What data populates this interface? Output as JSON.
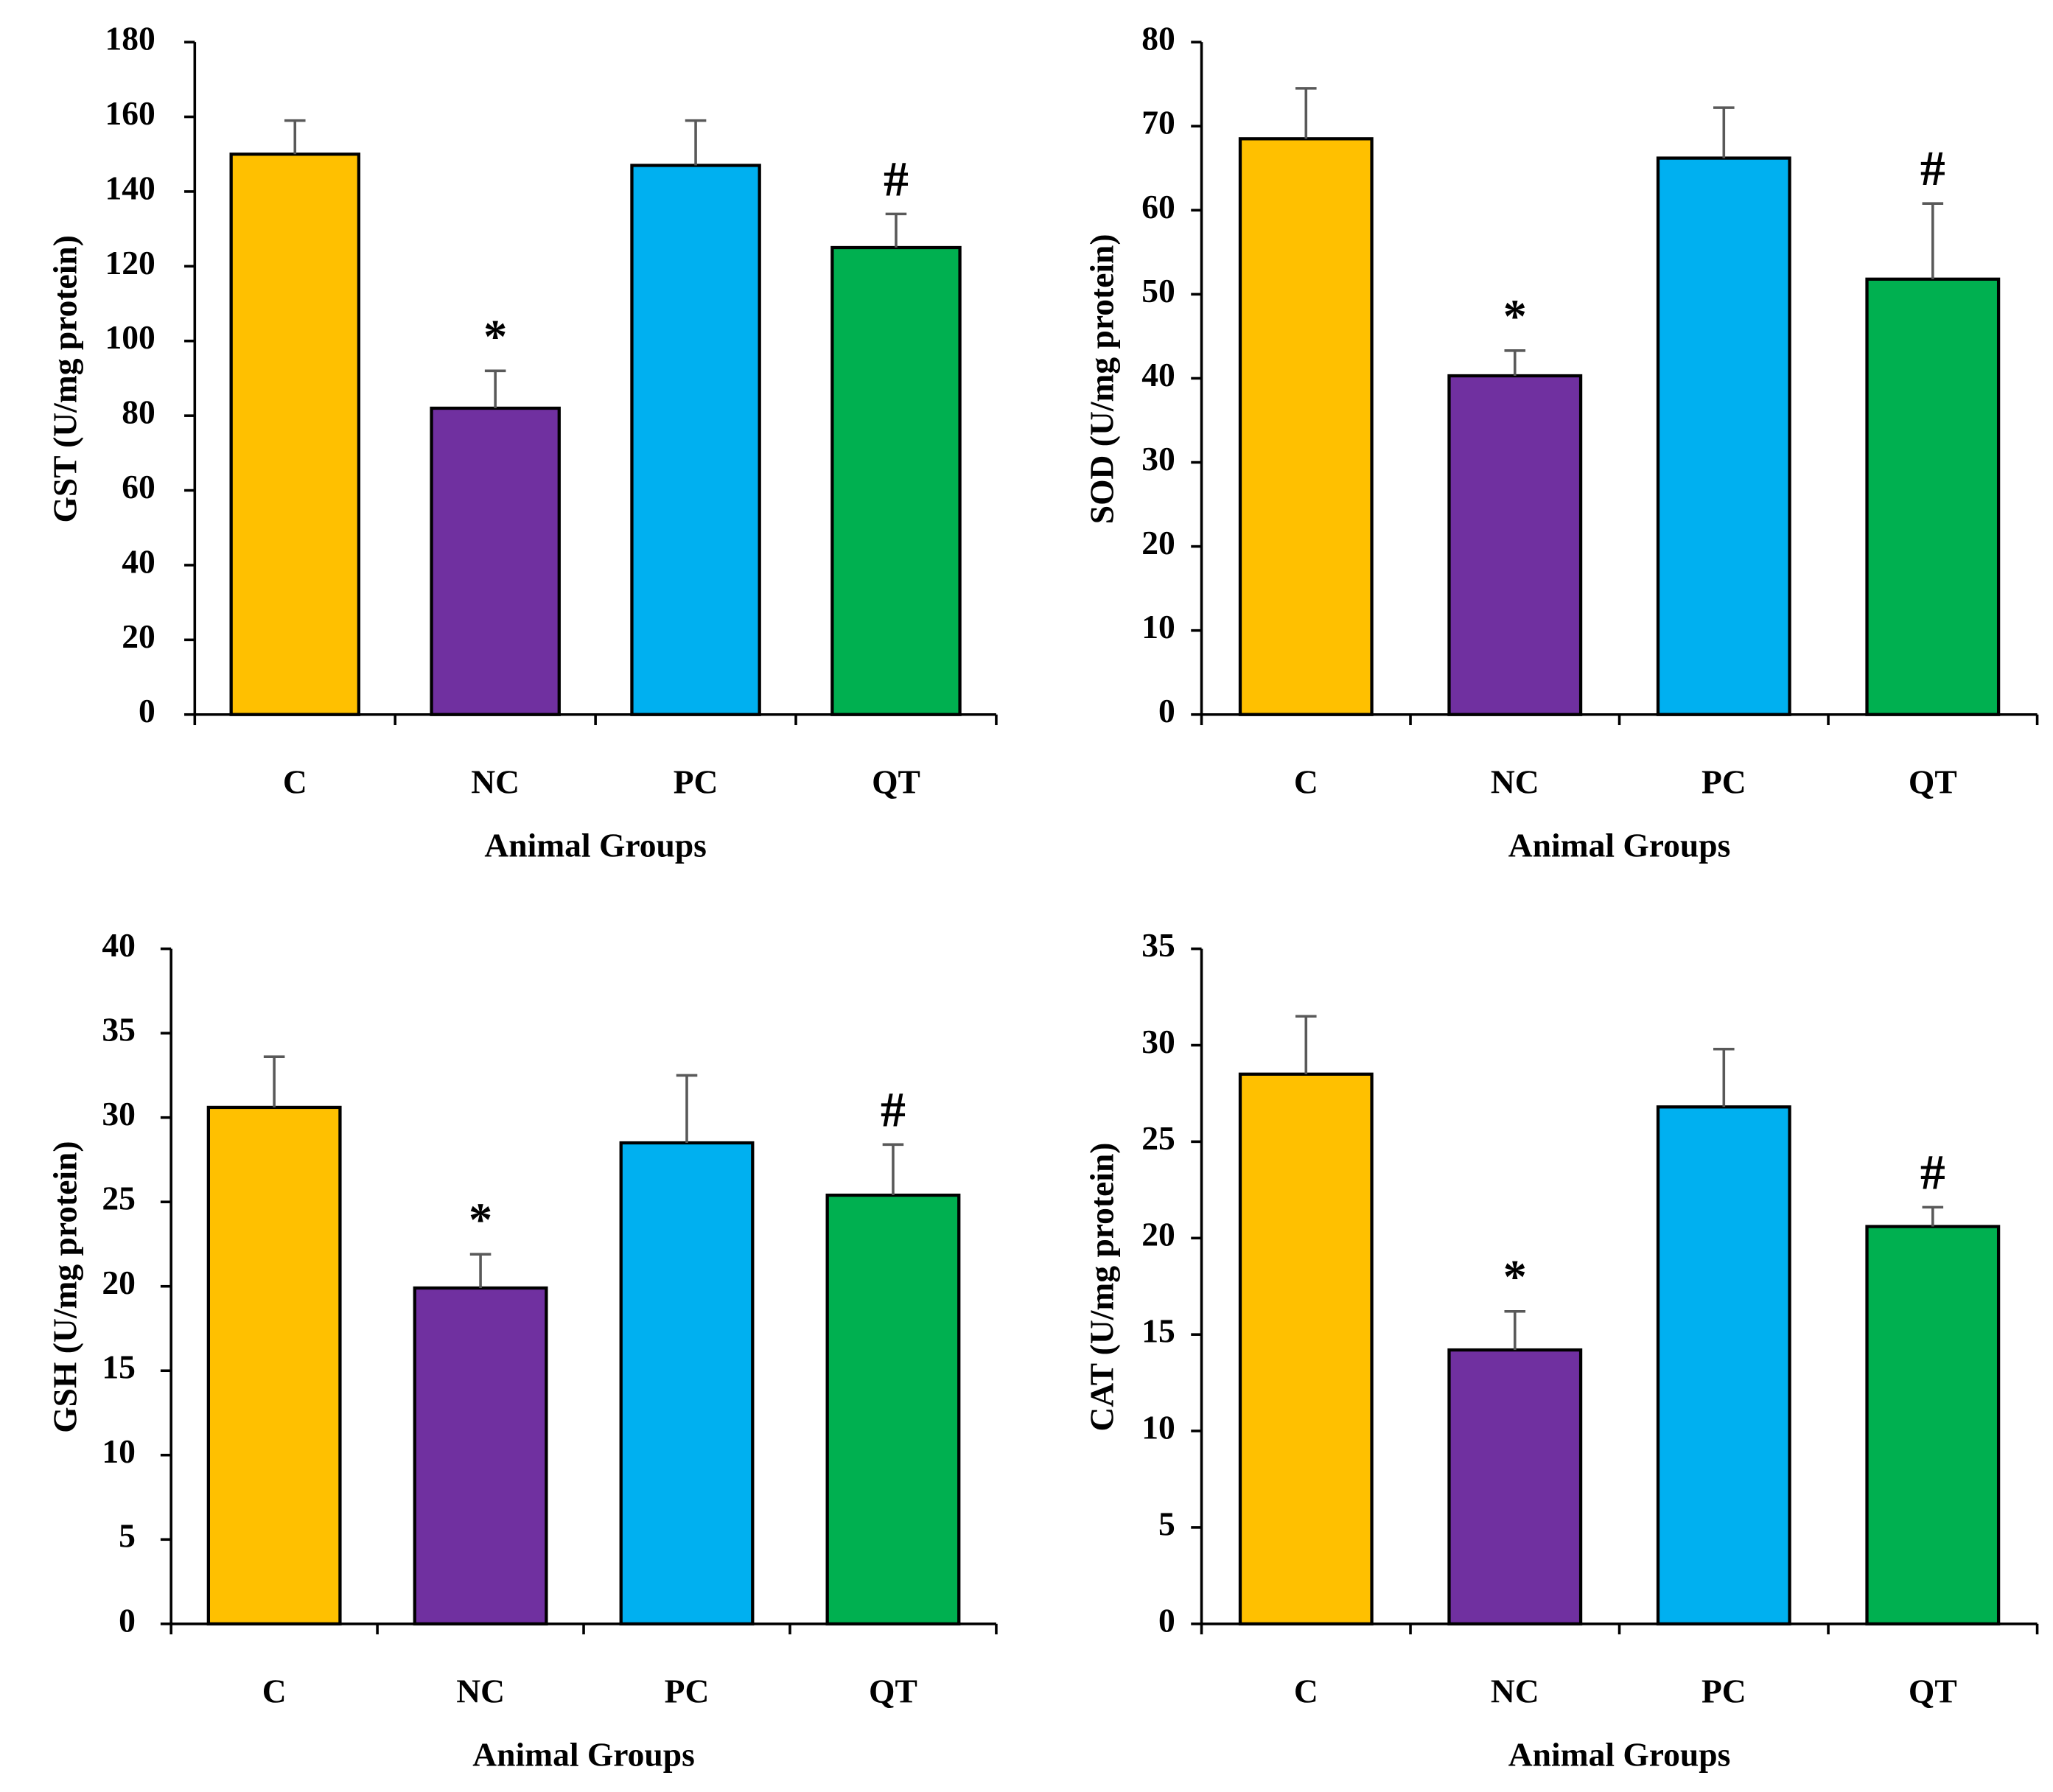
{
  "chart_data": [
    {
      "type": "bar",
      "categories": [
        "C",
        "NC",
        "PC",
        "QT"
      ],
      "values": [
        150,
        82,
        147,
        125
      ],
      "errors": [
        9,
        10,
        12,
        9
      ],
      "annotations": [
        "",
        "*",
        "",
        "#"
      ],
      "colors": [
        "#FFC000",
        "#7030A0",
        "#00B0F0",
        "#00B050"
      ],
      "xlabel": "Animal Groups",
      "ylabel": "GST (U/mg protein)",
      "ylim": [
        0,
        180
      ],
      "yticks": [
        "0",
        "20",
        "40",
        "60",
        "80",
        "100",
        "120",
        "140",
        "160",
        "180"
      ]
    },
    {
      "type": "bar",
      "categories": [
        "C",
        "NC",
        "PC",
        "QT"
      ],
      "values": [
        68.5,
        40.3,
        66.2,
        51.8
      ],
      "errors": [
        6,
        3,
        6,
        9
      ],
      "annotations": [
        "",
        "*",
        "",
        "#"
      ],
      "colors": [
        "#FFC000",
        "#7030A0",
        "#00B0F0",
        "#00B050"
      ],
      "xlabel": "Animal Groups",
      "ylabel": "SOD (U/mg protein)",
      "ylim": [
        0,
        80
      ],
      "yticks": [
        "0",
        "10",
        "20",
        "30",
        "40",
        "50",
        "60",
        "70",
        "80"
      ]
    },
    {
      "type": "bar",
      "categories": [
        "C",
        "NC",
        "PC",
        "QT"
      ],
      "values": [
        30.6,
        19.9,
        28.5,
        25.4
      ],
      "errors": [
        3,
        2,
        4,
        3
      ],
      "annotations": [
        "",
        "*",
        "",
        "#"
      ],
      "colors": [
        "#FFC000",
        "#7030A0",
        "#00B0F0",
        "#00B050"
      ],
      "xlabel": "Animal Groups",
      "ylabel": "GSH (U/mg protein)",
      "ylim": [
        0,
        40
      ],
      "yticks": [
        "0",
        "5",
        "10",
        "15",
        "20",
        "25",
        "30",
        "35",
        "40"
      ]
    },
    {
      "type": "bar",
      "categories": [
        "C",
        "NC",
        "PC",
        "QT"
      ],
      "values": [
        28.5,
        14.2,
        26.8,
        20.6
      ],
      "errors": [
        3,
        2,
        3,
        1
      ],
      "annotations": [
        "",
        "*",
        "",
        "#"
      ],
      "colors": [
        "#FFC000",
        "#7030A0",
        "#00B0F0",
        "#00B050"
      ],
      "xlabel": "Animal Groups",
      "ylabel": "CAT (U/mg protein)",
      "ylim": [
        0,
        35
      ],
      "yticks": [
        "0",
        "5",
        "10",
        "15",
        "20",
        "25",
        "30",
        "35"
      ]
    }
  ]
}
